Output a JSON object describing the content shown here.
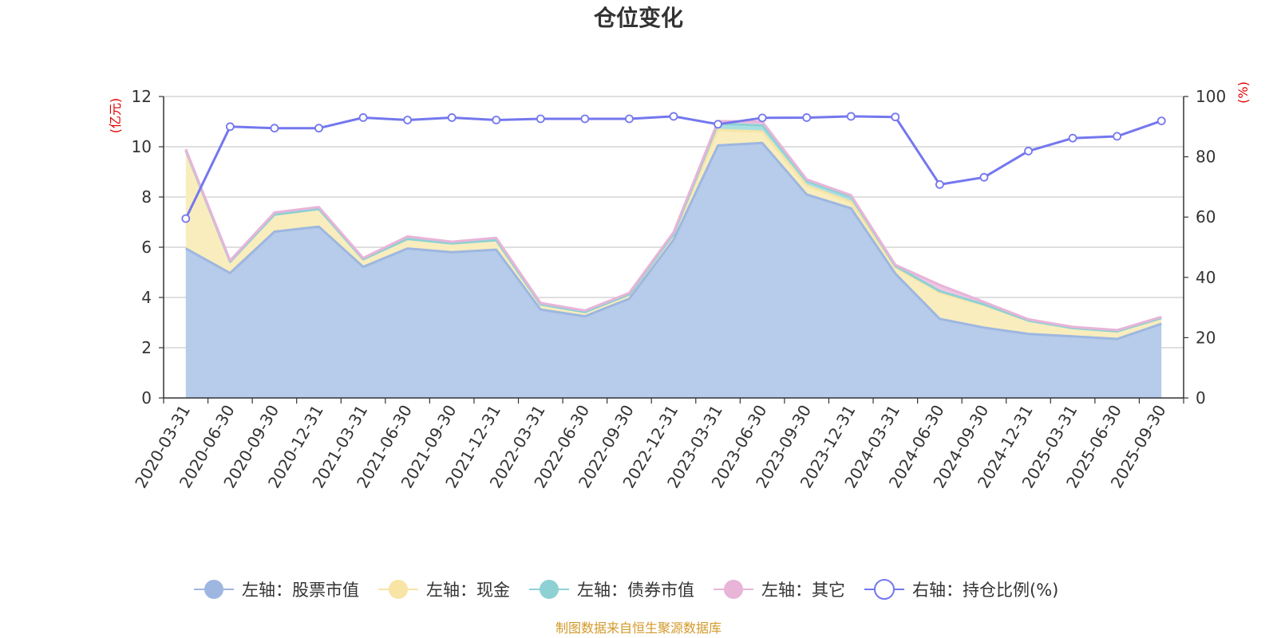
{
  "title": "仓位变化",
  "source": "制图数据来自恒生聚源数据库",
  "chart_data": {
    "type": "area",
    "title": "仓位变化",
    "x": [
      "2020-03-31",
      "2020-06-30",
      "2020-09-30",
      "2020-12-31",
      "2021-03-31",
      "2021-06-30",
      "2021-09-30",
      "2021-12-31",
      "2022-03-31",
      "2022-06-30",
      "2022-09-30",
      "2022-12-31",
      "2023-03-31",
      "2023-06-30",
      "2023-09-30",
      "2023-12-31",
      "2024-03-31",
      "2024-06-30",
      "2024-09-30",
      "2024-12-31",
      "2025-03-31",
      "2025-06-30",
      "2025-09-30"
    ],
    "left_axis": {
      "unit": "(亿元)",
      "ylim": [
        0,
        12
      ],
      "ticks": [
        "0",
        "2",
        "4",
        "6",
        "8",
        "10",
        "12"
      ]
    },
    "right_axis": {
      "unit": "(%)",
      "ylim": [
        0,
        100
      ],
      "ticks": [
        "0",
        "20",
        "40",
        "60",
        "80",
        "100"
      ]
    },
    "series": [
      {
        "name": "左轴：股票市值",
        "axis": "left",
        "stacked": true,
        "color": "#9db7e0",
        "fill": "#b7cbea",
        "values": [
          5.95,
          4.97,
          6.62,
          6.82,
          5.22,
          5.95,
          5.8,
          5.9,
          3.52,
          3.25,
          3.95,
          6.3,
          10.05,
          10.15,
          8.1,
          7.55,
          4.95,
          3.15,
          2.8,
          2.55,
          2.45,
          2.35,
          2.95
        ]
      },
      {
        "name": "左轴：现金",
        "axis": "left",
        "stacked": true,
        "color": "#f8e4a5",
        "fill": "#f9edbe",
        "values": [
          3.9,
          0.45,
          0.68,
          0.7,
          0.3,
          0.38,
          0.35,
          0.38,
          0.2,
          0.17,
          0.17,
          0.22,
          0.62,
          0.45,
          0.35,
          0.25,
          0.25,
          1.05,
          0.9,
          0.53,
          0.33,
          0.3,
          0.23
        ]
      },
      {
        "name": "左轴：债券市值",
        "axis": "left",
        "stacked": true,
        "color": "#8ed1d4",
        "fill": "#a9dfe0",
        "values": [
          0,
          0,
          0,
          0,
          0,
          0,
          0,
          0,
          0,
          0,
          0,
          0,
          0.25,
          0.25,
          0.18,
          0.2,
          0.05,
          0.05,
          0.02,
          0,
          0,
          0,
          0
        ]
      },
      {
        "name": "左轴：其它",
        "axis": "left",
        "stacked": true,
        "color": "#e8b4d8",
        "fill": "#efc6e2",
        "values": [
          0.05,
          0.05,
          0.08,
          0.08,
          0.05,
          0.1,
          0.07,
          0.09,
          0.06,
          0.06,
          0.06,
          0.08,
          0.1,
          0.15,
          0.07,
          0.07,
          0.05,
          0.25,
          0.1,
          0.05,
          0.05,
          0.05,
          0.05
        ]
      },
      {
        "name": "右轴：持仓比例(%)",
        "axis": "right",
        "stacked": false,
        "color": "#7477ee",
        "fill": "none",
        "values": [
          59.5,
          90.0,
          89.5,
          89.5,
          93.0,
          92.2,
          93.0,
          92.2,
          92.6,
          92.6,
          92.6,
          93.4,
          90.8,
          92.9,
          93.0,
          93.4,
          93.2,
          70.8,
          73.2,
          81.9,
          86.2,
          86.8,
          91.9
        ]
      }
    ],
    "legend_placement": "bottom-center",
    "grid": true
  }
}
